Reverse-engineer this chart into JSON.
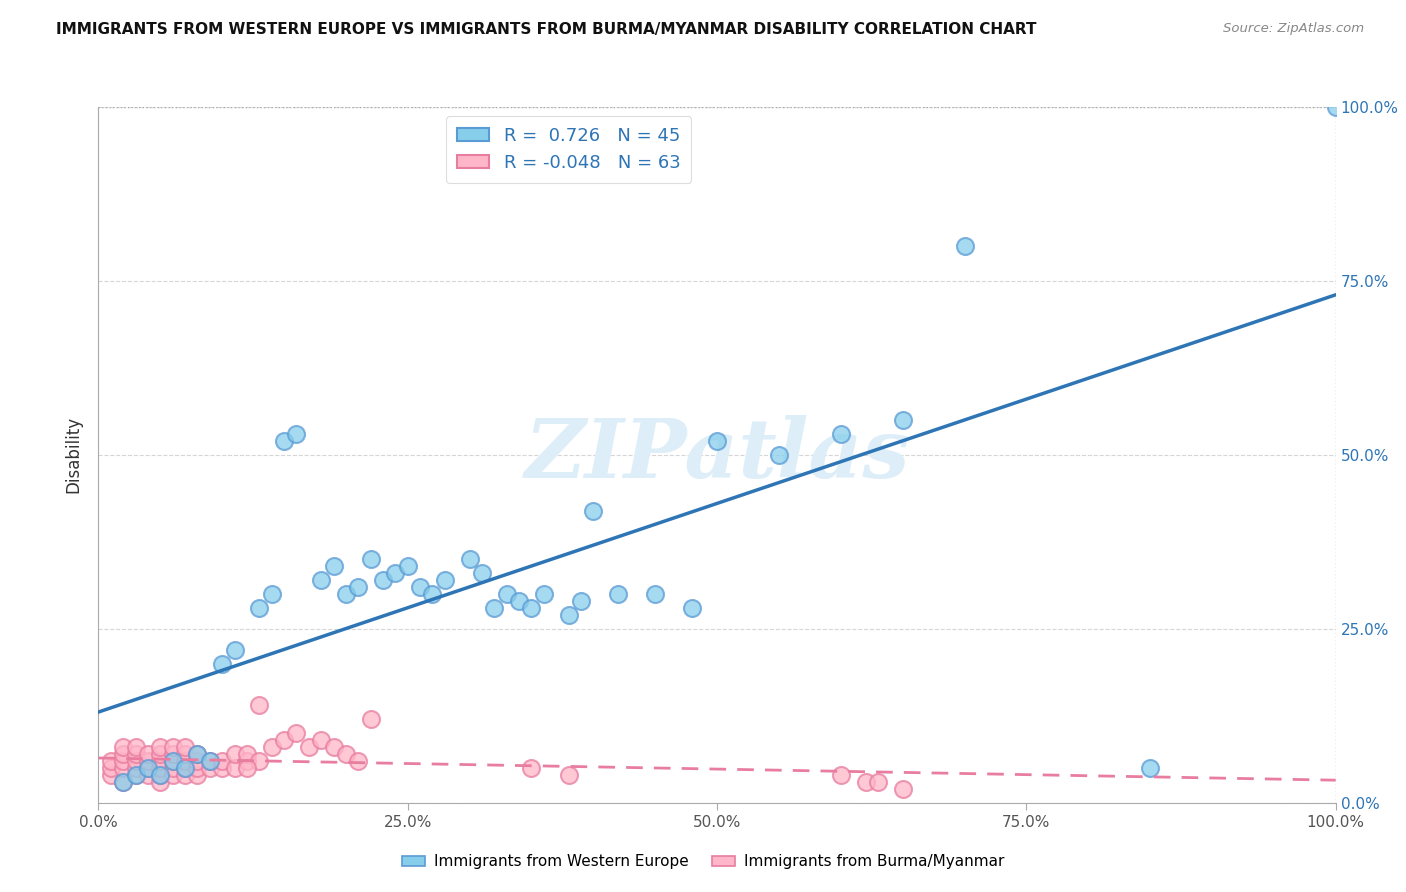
{
  "title": "IMMIGRANTS FROM WESTERN EUROPE VS IMMIGRANTS FROM BURMA/MYANMAR DISABILITY CORRELATION CHART",
  "source": "Source: ZipAtlas.com",
  "ylabel": "Disability",
  "r_blue": 0.726,
  "n_blue": 45,
  "r_pink": -0.048,
  "n_pink": 63,
  "blue_color": "#87CEEB",
  "blue_edge_color": "#5B9BD5",
  "pink_color": "#FFB6C8",
  "pink_edge_color": "#E87DA0",
  "blue_line_color": "#2E75B6",
  "pink_line_color": "#E87DA0",
  "watermark_color": "#DDEEF8",
  "legend_text_color": "#2E75B6",
  "right_axis_color": "#2E75B6",
  "grid_color": "#CCCCCC",
  "blue_scatter_x": [
    0.02,
    0.03,
    0.04,
    0.05,
    0.06,
    0.07,
    0.08,
    0.09,
    0.1,
    0.11,
    0.13,
    0.14,
    0.15,
    0.16,
    0.18,
    0.19,
    0.2,
    0.21,
    0.22,
    0.23,
    0.24,
    0.25,
    0.26,
    0.27,
    0.28,
    0.3,
    0.31,
    0.32,
    0.33,
    0.34,
    0.35,
    0.36,
    0.38,
    0.39,
    0.4,
    0.42,
    0.45,
    0.48,
    0.5,
    0.55,
    0.6,
    0.65,
    0.7,
    0.85,
    1.0
  ],
  "blue_scatter_y": [
    0.03,
    0.04,
    0.05,
    0.04,
    0.06,
    0.05,
    0.07,
    0.06,
    0.2,
    0.22,
    0.28,
    0.3,
    0.52,
    0.53,
    0.32,
    0.34,
    0.3,
    0.31,
    0.35,
    0.32,
    0.33,
    0.34,
    0.31,
    0.3,
    0.32,
    0.35,
    0.33,
    0.28,
    0.3,
    0.29,
    0.28,
    0.3,
    0.27,
    0.29,
    0.42,
    0.3,
    0.3,
    0.28,
    0.52,
    0.5,
    0.53,
    0.55,
    0.8,
    0.05,
    1.0
  ],
  "pink_scatter_x": [
    0.01,
    0.01,
    0.01,
    0.02,
    0.02,
    0.02,
    0.02,
    0.02,
    0.03,
    0.03,
    0.03,
    0.03,
    0.03,
    0.04,
    0.04,
    0.04,
    0.04,
    0.05,
    0.05,
    0.05,
    0.05,
    0.05,
    0.05,
    0.06,
    0.06,
    0.06,
    0.06,
    0.06,
    0.07,
    0.07,
    0.07,
    0.07,
    0.07,
    0.08,
    0.08,
    0.08,
    0.08,
    0.09,
    0.09,
    0.1,
    0.1,
    0.11,
    0.11,
    0.12,
    0.12,
    0.13,
    0.13,
    0.14,
    0.15,
    0.16,
    0.17,
    0.18,
    0.19,
    0.2,
    0.21,
    0.22,
    0.35,
    0.38,
    0.6,
    0.62,
    0.63,
    0.65,
    0.12
  ],
  "pink_scatter_y": [
    0.04,
    0.05,
    0.06,
    0.03,
    0.05,
    0.06,
    0.07,
    0.08,
    0.04,
    0.05,
    0.06,
    0.07,
    0.08,
    0.04,
    0.05,
    0.06,
    0.07,
    0.03,
    0.04,
    0.05,
    0.06,
    0.07,
    0.08,
    0.04,
    0.05,
    0.06,
    0.07,
    0.08,
    0.04,
    0.05,
    0.06,
    0.07,
    0.08,
    0.04,
    0.05,
    0.06,
    0.07,
    0.05,
    0.06,
    0.05,
    0.06,
    0.05,
    0.07,
    0.06,
    0.07,
    0.06,
    0.14,
    0.08,
    0.09,
    0.1,
    0.08,
    0.09,
    0.08,
    0.07,
    0.06,
    0.12,
    0.05,
    0.04,
    0.04,
    0.03,
    0.03,
    0.02,
    0.05
  ],
  "xlim": [
    0.0,
    1.0
  ],
  "ylim": [
    0.0,
    1.0
  ],
  "xticks": [
    0.0,
    0.25,
    0.5,
    0.75,
    1.0
  ],
  "xtick_labels": [
    "0.0%",
    "25.0%",
    "50.0%",
    "75.0%",
    "100.0%"
  ],
  "yticks": [
    0.0,
    0.25,
    0.5,
    0.75,
    1.0
  ],
  "ytick_labels_right": [
    "0.0%",
    "25.0%",
    "50.0%",
    "75.0%",
    "100.0%"
  ],
  "legend_label_blue": "Immigrants from Western Europe",
  "legend_label_pink": "Immigrants from Burma/Myanmar"
}
